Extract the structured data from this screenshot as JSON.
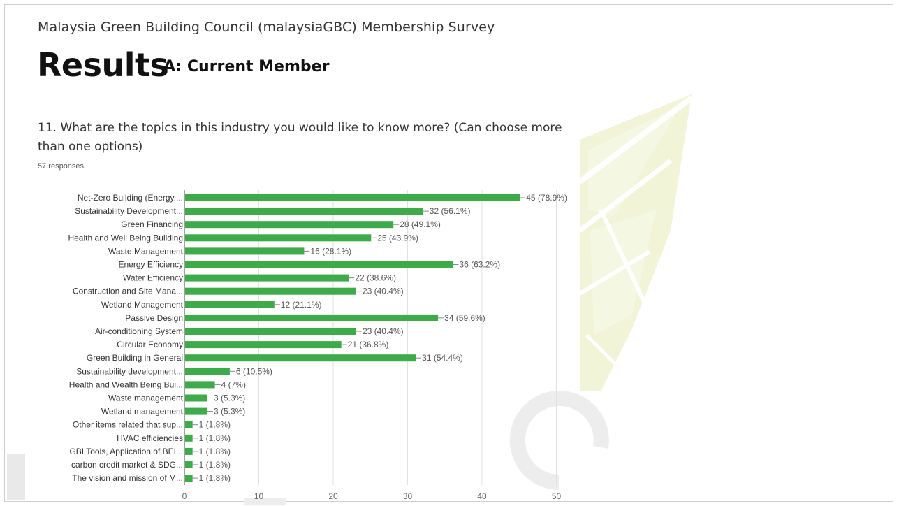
{
  "header": {
    "survey_title": "Malaysia Green Building Council (malaysiaGBC)  Membership Survey",
    "results_title": "Results",
    "section": "A: Current Member"
  },
  "question": {
    "text": "11. What are the topics in this industry you would like to know more? (Can choose more than one options)",
    "responses": "57 responses"
  },
  "colors": {
    "bar": "#3dab4a",
    "grid": "#e2e2e2",
    "watermark": "#eef2cf"
  },
  "chart_data": {
    "type": "bar",
    "orientation": "horizontal",
    "title": "",
    "xlabel": "",
    "ylabel": "",
    "xlim": [
      0,
      50
    ],
    "x_ticks": [
      0,
      10,
      20,
      30,
      40,
      50
    ],
    "grid": true,
    "categories": [
      "Net-Zero Building (Energy,...",
      "Sustainability Development...",
      "Green Financing",
      "Health and Well Being Building",
      "Waste Management",
      "Energy Efficiency",
      "Water Efficiency",
      "Construction and Site Mana...",
      "Wetland Management",
      "Passive Design",
      "Air-conditioning System",
      "Circular Economy",
      "Green Building in General",
      "Sustainability development...",
      "Health and Wealth Being Bui...",
      "Waste management",
      "Wetland management",
      "Other items related that sup...",
      "HVAC efficiencies",
      "GBI Tools, Application of BEI...",
      "carbon credit market & SDG...",
      "The vision and mission of M..."
    ],
    "values": [
      45,
      32,
      28,
      25,
      16,
      36,
      22,
      23,
      12,
      34,
      23,
      21,
      31,
      6,
      4,
      3,
      3,
      1,
      1,
      1,
      1,
      1
    ],
    "data_labels": [
      "45 (78.9%)",
      "32 (56.1%)",
      "28 (49.1%)",
      "25 (43.9%)",
      "16 (28.1%)",
      "36 (63.2%)",
      "22 (38.6%)",
      "23 (40.4%)",
      "12 (21.1%)",
      "34 (59.6%)",
      "23 (40.4%)",
      "21 (36.8%)",
      "31 (54.4%)",
      "6 (10.5%)",
      "4 (7%)",
      "3 (5.3%)",
      "3 (5.3%)",
      "1 (1.8%)",
      "1 (1.8%)",
      "1 (1.8%)",
      "1 (1.8%)",
      "1 (1.8%)"
    ]
  }
}
